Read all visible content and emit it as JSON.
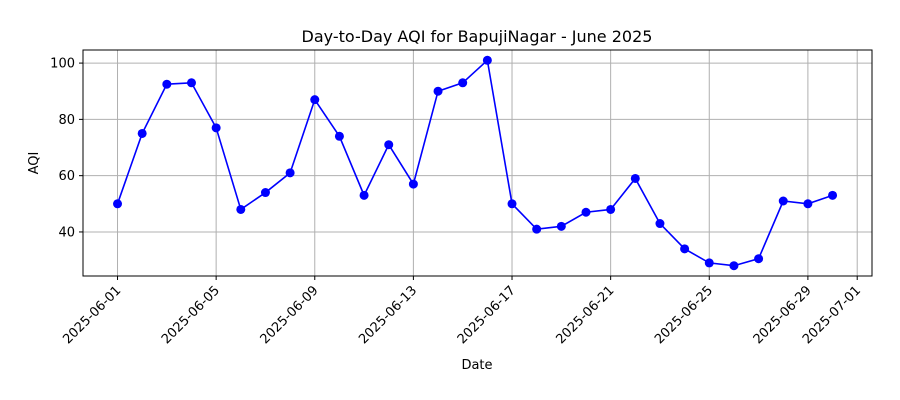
{
  "chart_data": {
    "type": "line",
    "title": "Day-to-Day AQI for BapujiNagar - June 2025",
    "xlabel": "Date",
    "ylabel": "AQI",
    "x": [
      "2025-06-01",
      "2025-06-02",
      "2025-06-03",
      "2025-06-04",
      "2025-06-05",
      "2025-06-06",
      "2025-06-07",
      "2025-06-08",
      "2025-06-09",
      "2025-06-10",
      "2025-06-11",
      "2025-06-12",
      "2025-06-13",
      "2025-06-14",
      "2025-06-15",
      "2025-06-16",
      "2025-06-17",
      "2025-06-18",
      "2025-06-19",
      "2025-06-20",
      "2025-06-21",
      "2025-06-22",
      "2025-06-23",
      "2025-06-24",
      "2025-06-25",
      "2025-06-26",
      "2025-06-27",
      "2025-06-28",
      "2025-06-29",
      "2025-06-30"
    ],
    "series": [
      {
        "values": [
          50,
          75,
          92.5,
          93,
          77,
          48,
          54,
          61,
          87,
          74,
          53,
          71,
          57,
          90,
          93,
          101,
          50,
          41,
          42,
          47,
          48,
          59,
          43,
          34,
          29,
          28,
          30.5,
          51,
          50,
          53
        ],
        "color": "#0000ff",
        "marker": "circle"
      }
    ],
    "x_ticks": [
      "2025-06-01",
      "2025-06-05",
      "2025-06-09",
      "2025-06-13",
      "2025-06-17",
      "2025-06-21",
      "2025-06-25",
      "2025-06-29",
      "2025-07-01"
    ],
    "y_ticks": [
      40,
      60,
      80,
      100
    ],
    "xlim": [
      "2025-05-30.6",
      "2025-07-01.6"
    ],
    "ylim": [
      24.35,
      104.65
    ],
    "grid": true,
    "legend": "none"
  }
}
